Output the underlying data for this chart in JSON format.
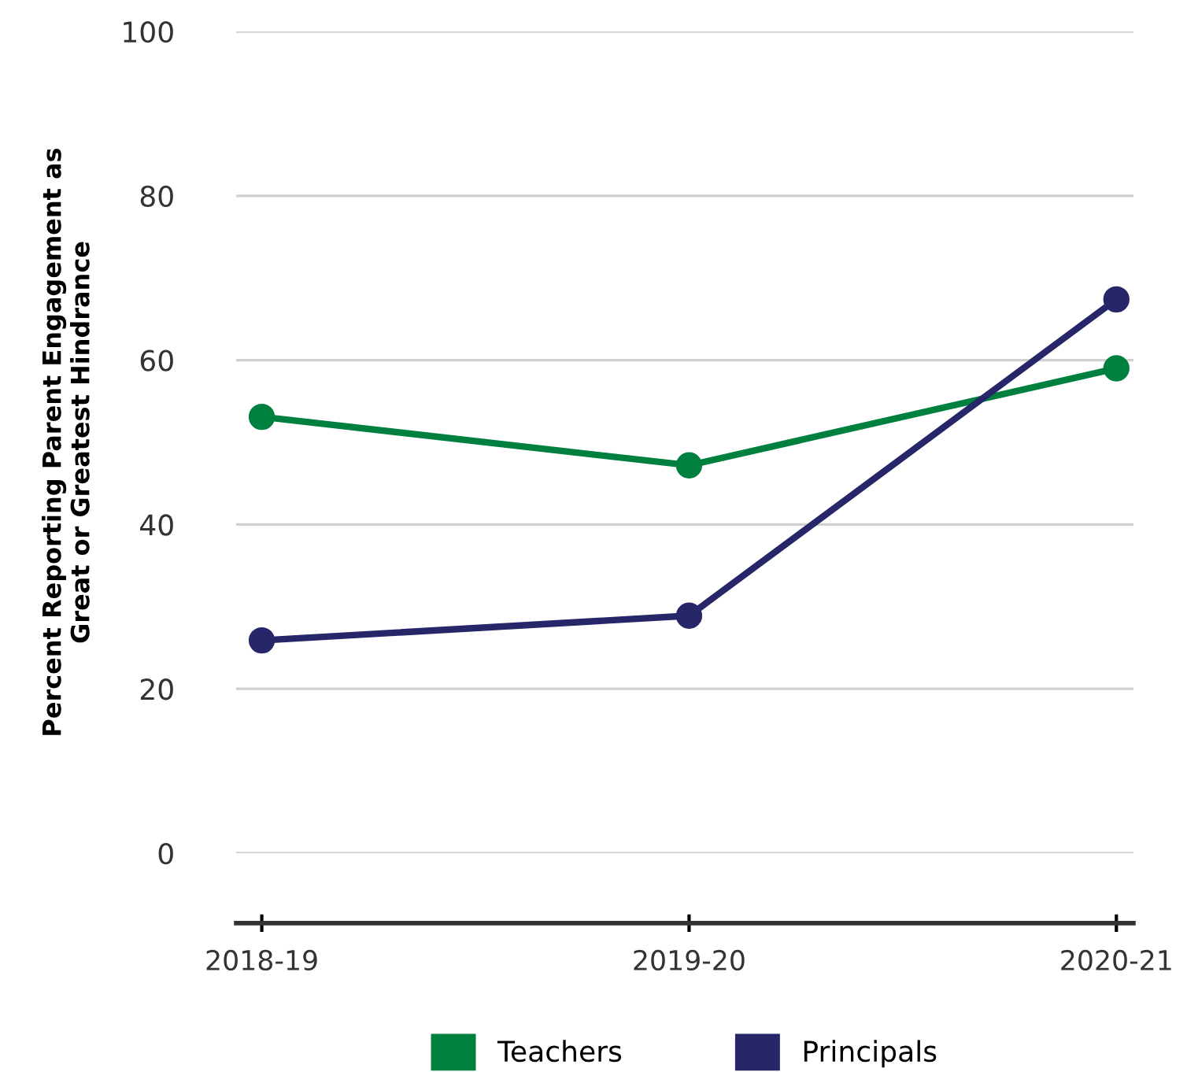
{
  "chart_data": {
    "type": "line",
    "ylabel": "Percent Reporting Parent Engagement as\nGreat or Greatest Hindrance",
    "categories": [
      "2018-19",
      "2019-20",
      "2020-21"
    ],
    "series": [
      {
        "name": "Teachers",
        "color": "#00803f",
        "values": [
          53.1,
          47.2,
          59.0
        ]
      },
      {
        "name": "Principals",
        "color": "#262669",
        "values": [
          25.9,
          28.9,
          67.4
        ]
      }
    ],
    "ylim": [
      0,
      100
    ],
    "yticks": [
      0,
      20,
      40,
      60,
      80,
      100
    ],
    "grid": "y",
    "legend": "bottom",
    "marker": "circle",
    "line_style": "solid"
  }
}
